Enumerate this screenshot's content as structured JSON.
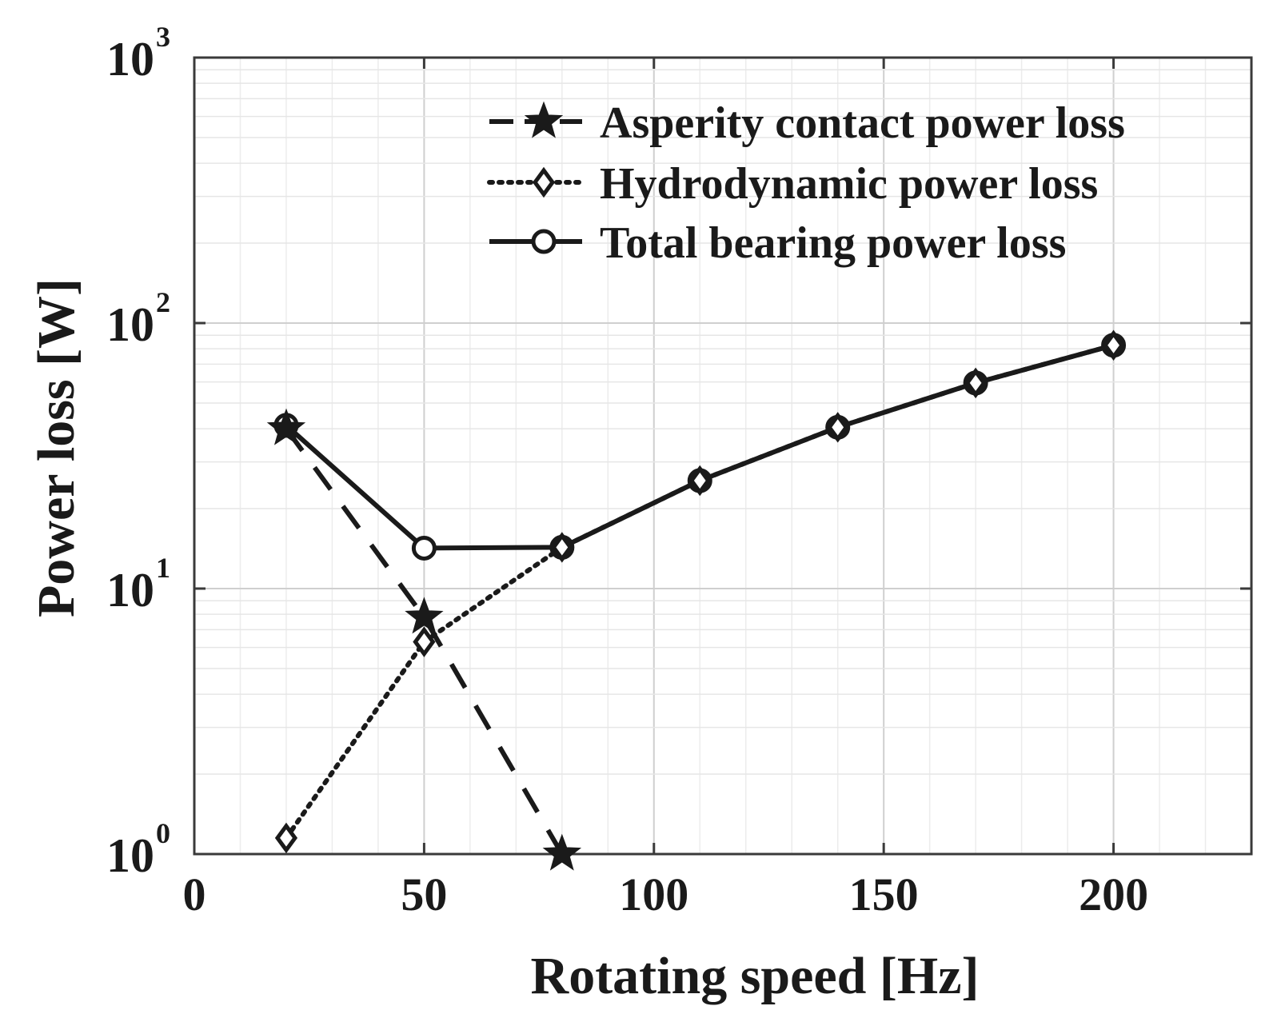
{
  "chart_data": {
    "type": "line",
    "title": "",
    "xlabel": "Rotating speed [Hz]",
    "ylabel": "Power loss [W]",
    "xlim": [
      0,
      230
    ],
    "ylim": [
      1,
      1000
    ],
    "yscale": "log",
    "grid": true,
    "legend_position": "top-right",
    "x_ticks": [
      0,
      50,
      100,
      150,
      200
    ],
    "x_tick_labels": [
      "0",
      "50",
      "100",
      "150",
      "200"
    ],
    "y_ticks": [
      1,
      10,
      100,
      1000
    ],
    "y_tick_labels": [
      {
        "base": "10",
        "exp": "0"
      },
      {
        "base": "10",
        "exp": "1"
      },
      {
        "base": "10",
        "exp": "2"
      },
      {
        "base": "10",
        "exp": "3"
      }
    ],
    "series": [
      {
        "name": "Asperity contact power loss",
        "line_style": "dashed",
        "marker": "star",
        "color": "#1a1a1a",
        "x": [
          20,
          50,
          80
        ],
        "y": [
          40,
          7.8,
          1.0
        ]
      },
      {
        "name": "Hydrodynamic power loss",
        "line_style": "dotted",
        "marker": "diamond",
        "color": "#1a1a1a",
        "x": [
          20,
          50,
          80,
          110,
          140,
          170,
          200
        ],
        "y": [
          1.15,
          6.3,
          14.3,
          25.5,
          40.5,
          59.5,
          82.5
        ]
      },
      {
        "name": "Total bearing power loss",
        "line_style": "solid",
        "marker": "circle",
        "color": "#1a1a1a",
        "x": [
          20,
          50,
          80,
          110,
          140,
          170,
          200
        ],
        "y": [
          41.2,
          14.2,
          14.3,
          25.5,
          40.5,
          59.5,
          82.5
        ]
      }
    ]
  }
}
